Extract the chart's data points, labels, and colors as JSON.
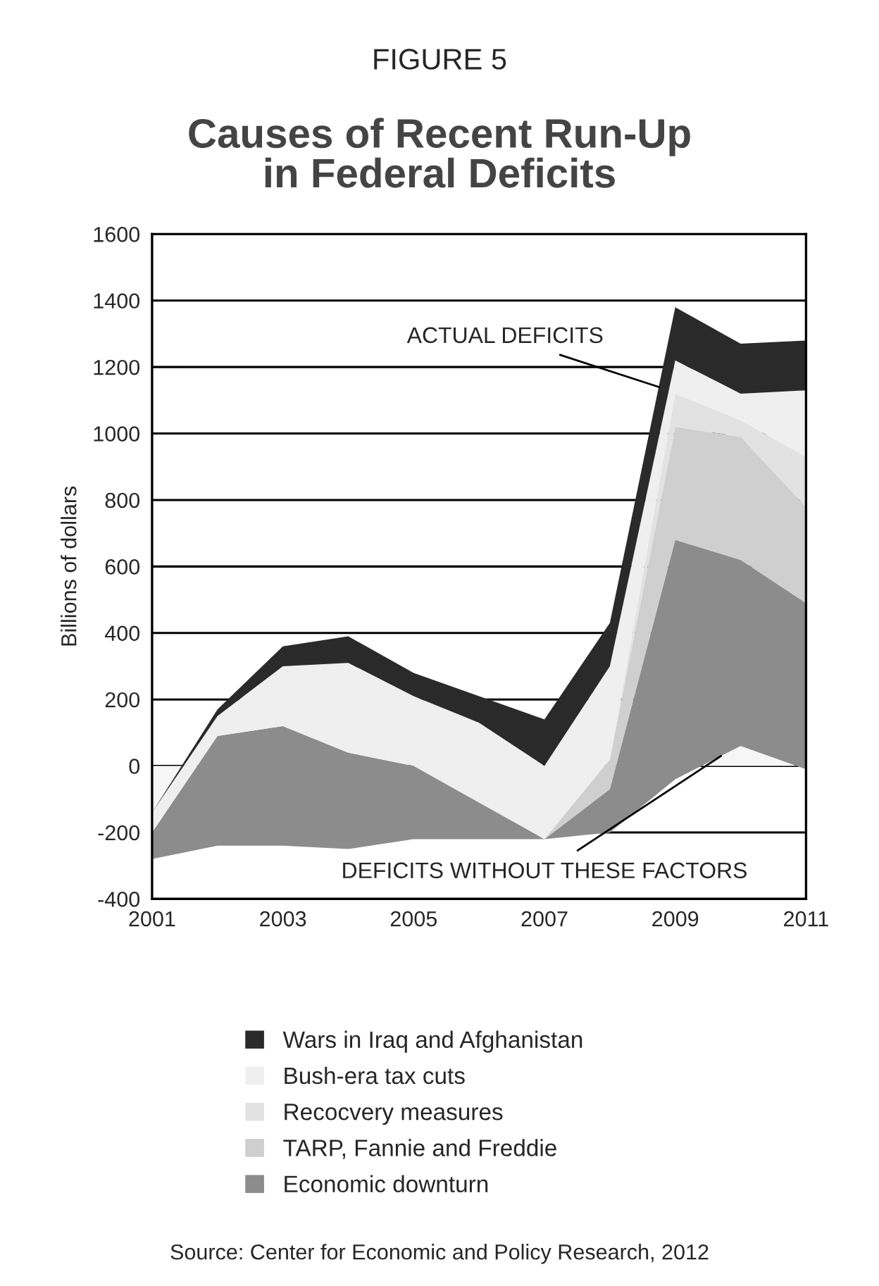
{
  "chart_data": {
    "type": "area",
    "subtitle": "FIGURE 5",
    "title": "Causes of Recent Run-Up\nin Federal Deficits",
    "ylabel": "Billions of dollars",
    "x": [
      2001,
      2002,
      2003,
      2004,
      2005,
      2006,
      2007,
      2008,
      2009,
      2010,
      2011
    ],
    "stacked": true,
    "series": [
      {
        "name": "DEFICITS WITHOUT THESE FACTORS",
        "color": "#f6f6f6",
        "values": [
          -280,
          -240,
          -240,
          -250,
          -220,
          -220,
          -220,
          -200,
          -40,
          60,
          -10
        ]
      },
      {
        "name": "Economic downturn",
        "color": "#8c8c8c",
        "values": [
          80,
          330,
          360,
          290,
          220,
          110,
          0,
          130,
          720,
          560,
          500
        ]
      },
      {
        "name": "TARP, Fannie and Freddie",
        "color": "#cfcfcf",
        "values": [
          0,
          0,
          0,
          0,
          0,
          0,
          0,
          90,
          340,
          370,
          290
        ]
      },
      {
        "name": "Recocvery measures",
        "color": "#e2e2e2",
        "values": [
          0,
          0,
          0,
          0,
          0,
          0,
          0,
          0,
          100,
          50,
          150
        ]
      },
      {
        "name": "Bush-era tax cuts",
        "color": "#efefef",
        "values": [
          60,
          60,
          180,
          270,
          210,
          240,
          220,
          280,
          100,
          80,
          200
        ]
      },
      {
        "name": "Wars in Iraq and Afghanistan",
        "color": "#2a2a2a",
        "values": [
          0,
          20,
          60,
          80,
          70,
          80,
          140,
          130,
          160,
          150,
          150
        ]
      }
    ],
    "xlim": [
      2001,
      2011
    ],
    "xticks": [
      2001,
      2003,
      2005,
      2007,
      2009,
      2011
    ],
    "ylim": [
      -400,
      1600
    ],
    "yticks": [
      -400,
      -200,
      0,
      200,
      400,
      600,
      800,
      1000,
      1200,
      1400,
      1600
    ],
    "grid": "y",
    "legend": "bottom",
    "annotations": [
      {
        "text": "ACTUAL DEFICITS",
        "x": 2008.75,
        "y": 1140
      },
      "Source: Center for Economic and Policy Research, 2012"
    ]
  }
}
